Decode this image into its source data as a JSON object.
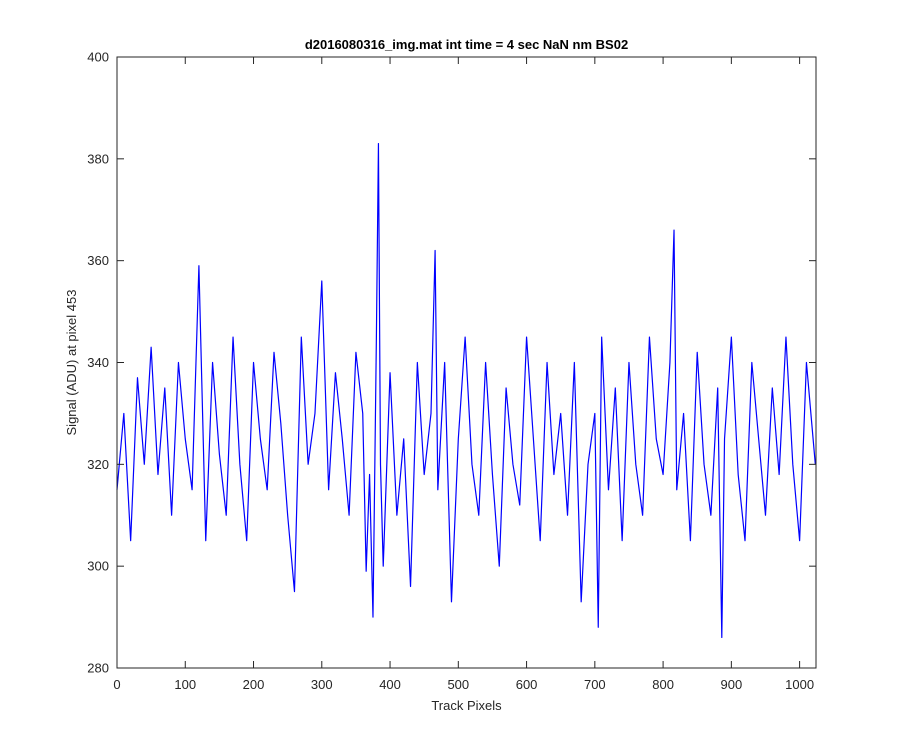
{
  "chart_data": {
    "type": "line",
    "title": "d2016080316_img.mat int time = 4 sec  NaN nm BS02",
    "xlabel": "Track Pixels",
    "ylabel": "Signal (ADU) at pixel 453",
    "xlim": [
      0,
      1024
    ],
    "ylim": [
      280,
      400
    ],
    "xticks": [
      0,
      100,
      200,
      300,
      400,
      500,
      600,
      700,
      800,
      900,
      1000
    ],
    "yticks": [
      280,
      300,
      320,
      340,
      360,
      380,
      400
    ],
    "grid": false,
    "legend": false,
    "line_color": "#0000ff",
    "axes_color": "#262626",
    "series": [
      {
        "name": "",
        "x": [
          0,
          10,
          20,
          30,
          40,
          50,
          60,
          70,
          80,
          90,
          100,
          110,
          120,
          130,
          140,
          150,
          160,
          170,
          180,
          190,
          200,
          210,
          220,
          230,
          240,
          250,
          260,
          270,
          280,
          290,
          300,
          310,
          320,
          330,
          340,
          350,
          360,
          365,
          370,
          375,
          380,
          383,
          386,
          390,
          400,
          410,
          420,
          430,
          440,
          450,
          460,
          466,
          470,
          480,
          490,
          500,
          510,
          520,
          530,
          540,
          550,
          560,
          570,
          580,
          590,
          600,
          610,
          620,
          630,
          640,
          650,
          660,
          670,
          680,
          690,
          700,
          705,
          710,
          720,
          730,
          740,
          750,
          760,
          770,
          780,
          790,
          800,
          810,
          816,
          820,
          830,
          840,
          850,
          860,
          870,
          880,
          886,
          890,
          900,
          910,
          920,
          930,
          940,
          950,
          960,
          970,
          980,
          990,
          1000,
          1010,
          1023
        ],
        "y": [
          315,
          330,
          305,
          337,
          320,
          343,
          318,
          335,
          310,
          340,
          325,
          315,
          359,
          305,
          340,
          322,
          310,
          345,
          320,
          305,
          340,
          325,
          315,
          342,
          328,
          310,
          295,
          345,
          320,
          330,
          356,
          315,
          338,
          325,
          310,
          342,
          330,
          299,
          318,
          290,
          345,
          383,
          320,
          300,
          338,
          310,
          325,
          296,
          340,
          318,
          330,
          362,
          315,
          340,
          293,
          325,
          345,
          320,
          310,
          340,
          318,
          300,
          335,
          320,
          312,
          345,
          325,
          305,
          340,
          318,
          330,
          310,
          340,
          293,
          320,
          330,
          288,
          345,
          315,
          335,
          305,
          340,
          320,
          310,
          345,
          325,
          318,
          340,
          366,
          315,
          330,
          305,
          342,
          320,
          310,
          335,
          286,
          325,
          345,
          318,
          305,
          340,
          325,
          310,
          335,
          318,
          345,
          320,
          305,
          340,
          320
        ]
      }
    ]
  }
}
